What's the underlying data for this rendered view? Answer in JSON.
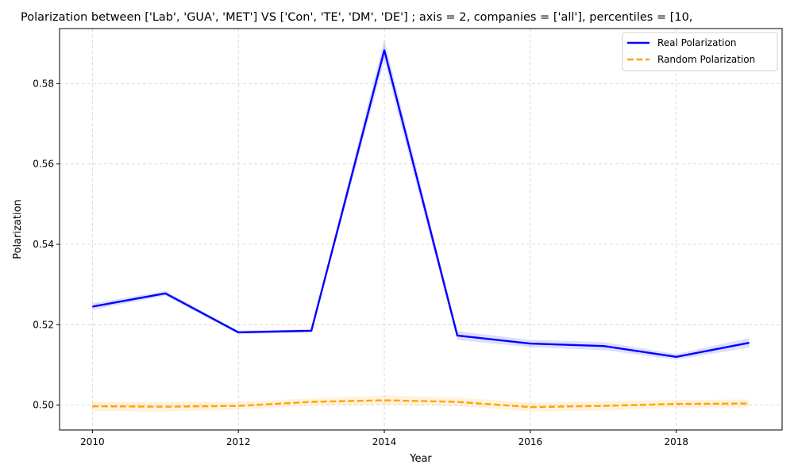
{
  "chart_data": {
    "type": "line",
    "title": "Polarization between ['Lab', 'GUA', 'MET'] VS ['Con', 'TE', 'DM', 'DE'] ; axis = 2, companies = ['all'], percentiles = [10,",
    "xlabel": "Year",
    "ylabel": "Polarization",
    "x": [
      2010,
      2011,
      2012,
      2013,
      2014,
      2015,
      2016,
      2017,
      2018,
      2019
    ],
    "xlim": [
      2009.55,
      2019.45
    ],
    "ylim": [
      0.4938,
      0.5937
    ],
    "xticks": [
      2010,
      2012,
      2014,
      2016,
      2018
    ],
    "xtick_labels": [
      "2010",
      "2012",
      "2014",
      "2016",
      "2018"
    ],
    "yticks": [
      0.5,
      0.52,
      0.54,
      0.56,
      0.58
    ],
    "ytick_labels": [
      "0.50",
      "0.52",
      "0.54",
      "0.56",
      "0.58"
    ],
    "grid": true,
    "legend_position": "top-right",
    "series": [
      {
        "name": "Real Polarization",
        "values": [
          0.5245,
          0.5278,
          0.5181,
          0.5185,
          0.5883,
          0.5173,
          0.5153,
          0.5147,
          0.512,
          0.5155
        ],
        "band_lower": [
          0.5237,
          0.5272,
          0.5177,
          0.5181,
          0.5856,
          0.5162,
          0.5144,
          0.5137,
          0.5113,
          0.5143
        ],
        "band_upper": [
          0.5253,
          0.5284,
          0.5185,
          0.5189,
          0.591,
          0.5184,
          0.5162,
          0.5157,
          0.5127,
          0.5167
        ],
        "color": "#0000ff",
        "band_color": "#0000ff",
        "style": "solid"
      },
      {
        "name": "Random Polarization",
        "values": [
          0.4997,
          0.4996,
          0.4998,
          0.5008,
          0.5012,
          0.5008,
          0.4995,
          0.4998,
          0.5003,
          0.5004
        ],
        "band_lower": [
          0.4985,
          0.4984,
          0.4988,
          0.4999,
          0.5,
          0.4997,
          0.4984,
          0.4986,
          0.4993,
          0.4994
        ],
        "band_upper": [
          0.5009,
          0.5008,
          0.5008,
          0.5017,
          0.5024,
          0.5019,
          0.5006,
          0.501,
          0.5013,
          0.5014
        ],
        "color": "#ffa500",
        "band_color": "#ffa500",
        "style": "dashed"
      }
    ]
  }
}
